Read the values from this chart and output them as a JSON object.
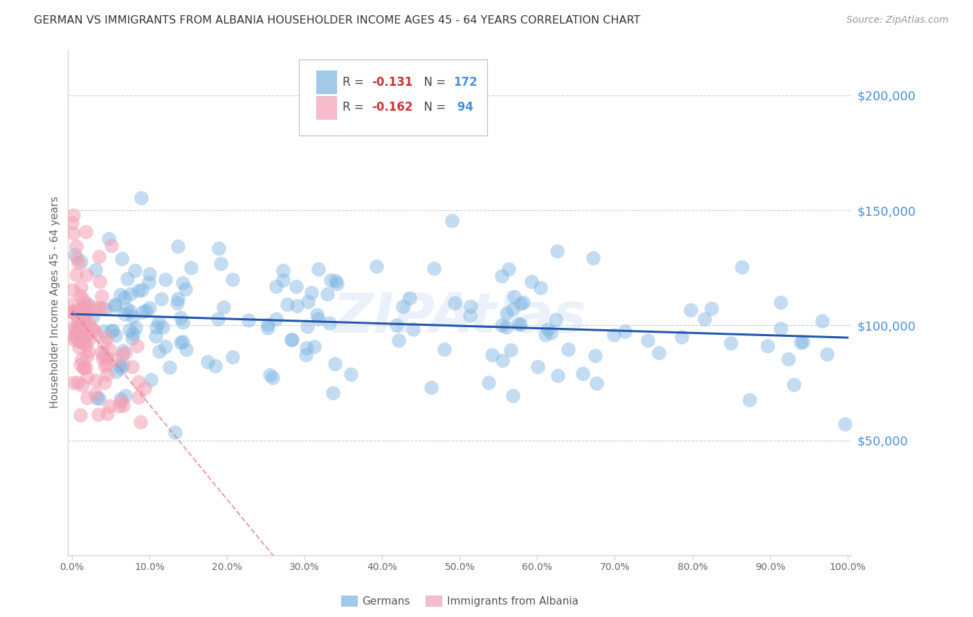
{
  "title": "GERMAN VS IMMIGRANTS FROM ALBANIA HOUSEHOLDER INCOME AGES 45 - 64 YEARS CORRELATION CHART",
  "source": "Source: ZipAtlas.com",
  "ylabel": "Householder Income Ages 45 - 64 years",
  "ytick_labels": [
    "$50,000",
    "$100,000",
    "$150,000",
    "$200,000"
  ],
  "ytick_values": [
    50000,
    100000,
    150000,
    200000
  ],
  "ymin": 0,
  "ymax": 220000,
  "xmin": 0.0,
  "xmax": 1.0,
  "german_R": -0.131,
  "german_N": 172,
  "albania_R": -0.162,
  "albania_N": 94,
  "german_color": "#7ab3e0",
  "albania_color": "#f4a0b5",
  "german_line_color": "#2255aa",
  "albania_line_color": "#e08090",
  "watermark": "ZIPAtlas"
}
